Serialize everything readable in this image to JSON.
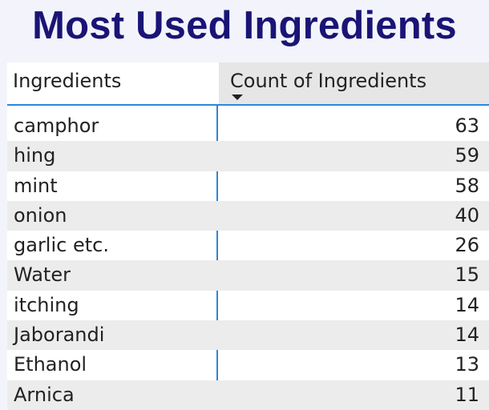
{
  "title": "Most Used Ingredients",
  "chart_data": {
    "type": "table",
    "columns": [
      "Ingredients",
      "Count of Ingredients"
    ],
    "sort": {
      "column": "Count of Ingredients",
      "direction": "descending"
    },
    "rows": [
      {
        "name": "camphor",
        "count": 63
      },
      {
        "name": "hing",
        "count": 59
      },
      {
        "name": "mint",
        "count": 58
      },
      {
        "name": "onion",
        "count": 40
      },
      {
        "name": "garlic etc.",
        "count": 26
      },
      {
        "name": "Water",
        "count": 15
      },
      {
        "name": "itching",
        "count": 14
      },
      {
        "name": "Jaborandi",
        "count": 14
      },
      {
        "name": "Ethanol",
        "count": 13
      },
      {
        "name": "Arnica",
        "count": 11
      }
    ]
  },
  "colors": {
    "title": "#1a1476",
    "accent": "#2e86d9",
    "alt_row": "#ececec"
  },
  "icons": {
    "sort": "sort-descending-icon"
  }
}
